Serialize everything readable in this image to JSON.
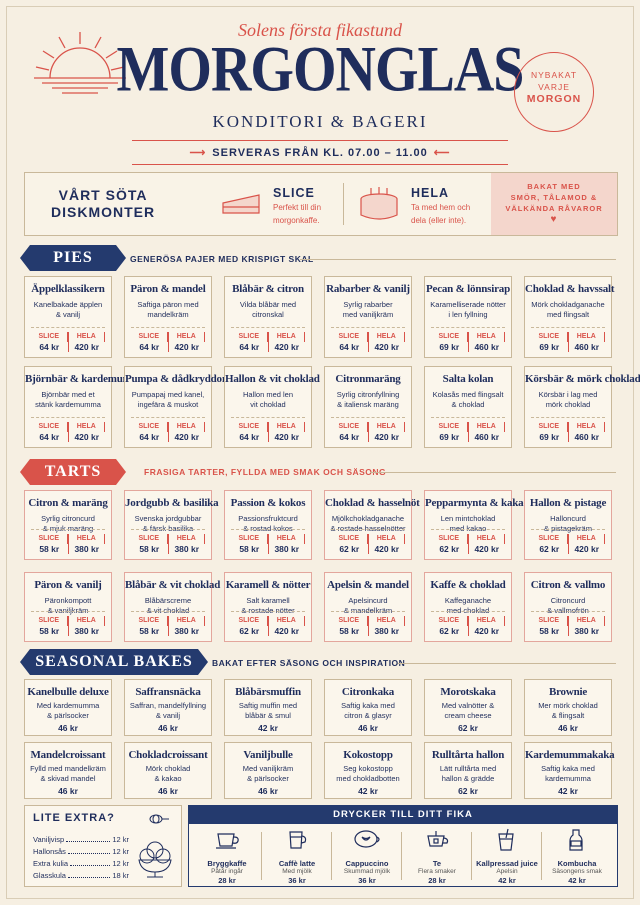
{
  "header": {
    "tagline": "Solens första fikastund",
    "brand": "MORGONGLAS",
    "subtitle": "KONDITORI & BAGERI",
    "serving": "SERVERAS FRÅN KL. 07.00 – 11.00",
    "stamp": [
      "NYBAKAT",
      "VARJE",
      "MORGON"
    ]
  },
  "showcase": {
    "title_line1": "VÅRT SÖTA",
    "title_line2": "DISKMONTER",
    "slice_name": "SLICE",
    "slice_desc_1": "Perfekt till din",
    "slice_desc_2": "morgonkaffe.",
    "whole_name": "HELA",
    "whole_desc_1": "Ta med hem och",
    "whole_desc_2": "dela (eller inte).",
    "promo": [
      "BAKAT MED",
      "SMÖR, TÅLAMOD &",
      "VÄLKÄNDA RÅVAROR"
    ]
  },
  "labels": {
    "slice": "SLICE",
    "whole": "HELA"
  },
  "pies": {
    "heading": "PIES",
    "subheading": "GENERÖSA PAJER MED KRISPIGT SKAL",
    "items": [
      {
        "name": "Äppelklassikern",
        "desc1": "Kanelbakade äpplen",
        "desc2": "& vanilj",
        "slice": "64 kr",
        "whole": "420 kr"
      },
      {
        "name": "Päron & mandel",
        "desc1": "Saftiga päron med",
        "desc2": "mandelkräm",
        "slice": "64 kr",
        "whole": "420 kr"
      },
      {
        "name": "Blåbär & citron",
        "desc1": "Vilda blåbär med",
        "desc2": "citronskal",
        "slice": "64 kr",
        "whole": "420 kr"
      },
      {
        "name": "Rabarber & vanilj",
        "desc1": "Syrlig rabarber",
        "desc2": "med vaniljkräm",
        "slice": "64 kr",
        "whole": "420 kr"
      },
      {
        "name": "Pecan & lönnsirap",
        "desc1": "Karamelliserade nötter",
        "desc2": "i len fyllning",
        "slice": "69 kr",
        "whole": "460 kr"
      },
      {
        "name": "Choklad & havssalt",
        "desc1": "Mörk chokladganache",
        "desc2": "med flingsalt",
        "slice": "69 kr",
        "whole": "460 kr"
      },
      {
        "name": "Björnbär & kardemumma",
        "desc1": "Björnbär med et",
        "desc2": "stänk kardemumma",
        "slice": "64 kr",
        "whole": "420 kr"
      },
      {
        "name": "Pumpa & dådkryddor",
        "desc1": "Pumpapaj med kanel,",
        "desc2": "ingefära & muskot",
        "slice": "64 kr",
        "whole": "420 kr"
      },
      {
        "name": "Hallon & vit choklad",
        "desc1": "Hallon med len",
        "desc2": "vit choklad",
        "slice": "64 kr",
        "whole": "420 kr"
      },
      {
        "name": "Citronmaräng",
        "desc1": "Syrlig citronfyllning",
        "desc2": "& italiensk maräng",
        "slice": "64 kr",
        "whole": "420 kr"
      },
      {
        "name": "Salta kolan",
        "desc1": "Kolasås med flingsalt",
        "desc2": "& choklad",
        "slice": "69 kr",
        "whole": "460 kr"
      },
      {
        "name": "Körsbär & mörk choklad",
        "desc1": "Körsbär i lag med",
        "desc2": "mörk choklad",
        "slice": "69 kr",
        "whole": "460 kr"
      }
    ]
  },
  "tarts": {
    "heading": "TARTS",
    "subheading": "FRASIGA TARTER, FYLLDA MED SMAK OCH SÄSONG",
    "items": [
      {
        "name": "Citron & maräng",
        "desc1": "Syrlig citroncurd",
        "desc2": "& mjuk maräng",
        "slice": "58 kr",
        "whole": "380 kr"
      },
      {
        "name": "Jordgubb & basilika",
        "desc1": "Svenska jordgubbar",
        "desc2": "& färsk basilika",
        "slice": "58 kr",
        "whole": "380 kr"
      },
      {
        "name": "Passion & kokos",
        "desc1": "Passionsfruktcurd",
        "desc2": "& rostad kokos",
        "slice": "58 kr",
        "whole": "380 kr"
      },
      {
        "name": "Choklad & hasselnöt",
        "desc1": "Mjölkchokladganache",
        "desc2": "& rostade hasselnötter",
        "slice": "62 kr",
        "whole": "420 kr"
      },
      {
        "name": "Pepparmynta & kakao",
        "desc1": "Len mintchoklad",
        "desc2": "med kakao",
        "slice": "62 kr",
        "whole": "420 kr"
      },
      {
        "name": "Hallon & pistage",
        "desc1": "Halloncurd",
        "desc2": "& pistagekräm",
        "slice": "62 kr",
        "whole": "420 kr"
      },
      {
        "name": "Päron & vanilj",
        "desc1": "Päronkompott",
        "desc2": "& vaniljkräm",
        "slice": "58 kr",
        "whole": "380 kr"
      },
      {
        "name": "Blåbär & vit choklad",
        "desc1": "Blåbärscreme",
        "desc2": "& vit choklad",
        "slice": "58 kr",
        "whole": "380 kr"
      },
      {
        "name": "Karamell & nötter",
        "desc1": "Salt karamell",
        "desc2": "& rostade nötter",
        "slice": "62 kr",
        "whole": "420 kr"
      },
      {
        "name": "Apelsin & mandel",
        "desc1": "Apelsincurd",
        "desc2": "& mandelkräm",
        "slice": "58 kr",
        "whole": "380 kr"
      },
      {
        "name": "Kaffe & choklad",
        "desc1": "Kaffeganache",
        "desc2": "med choklad",
        "slice": "62 kr",
        "whole": "420 kr"
      },
      {
        "name": "Citron & vallmo",
        "desc1": "Citroncurd",
        "desc2": "& vallmofrön",
        "slice": "58 kr",
        "whole": "380 kr"
      }
    ]
  },
  "seasonal": {
    "heading": "SEASONAL BAKES",
    "subheading": "BAKAT EFTER SÄSONG OCH INSPIRATION",
    "items": [
      {
        "name": "Kanelbulle deluxe",
        "desc1": "Med kardemumma",
        "desc2": "& pärlsocker",
        "price": "46 kr"
      },
      {
        "name": "Saffransnäcka",
        "desc1": "Saffran, mandelfyllning",
        "desc2": "& vanilj",
        "price": "46 kr"
      },
      {
        "name": "Blåbärsmuffin",
        "desc1": "Saftig muffin med",
        "desc2": "blåbär & smul",
        "price": "42 kr"
      },
      {
        "name": "Citronkaka",
        "desc1": "Saftig kaka med",
        "desc2": "citron & glasyr",
        "price": "46 kr"
      },
      {
        "name": "Morotskaka",
        "desc1": "Med valnötter &",
        "desc2": "cream cheese",
        "price": "62 kr"
      },
      {
        "name": "Brownie",
        "desc1": "Mer mörk choklad",
        "desc2": "& flingsalt",
        "price": "46 kr"
      },
      {
        "name": "Mandelcroissant",
        "desc1": "Fylld med mandelkräm",
        "desc2": "& skivad mandel",
        "price": "46 kr"
      },
      {
        "name": "Chokladcroissant",
        "desc1": "Mörk choklad",
        "desc2": "& kakao",
        "price": "46 kr"
      },
      {
        "name": "Vaniljbulle",
        "desc1": "Med vaniljkräm",
        "desc2": "& pärlsocker",
        "price": "46 kr"
      },
      {
        "name": "Kokostopp",
        "desc1": "Seg kokostopp",
        "desc2": "med chokladbotten",
        "price": "42 kr"
      },
      {
        "name": "Rulltårta hallon",
        "desc1": "Lätt rulltårta med",
        "desc2": "hallon & grädde",
        "price": "62 kr"
      },
      {
        "name": "Kardemummakaka",
        "desc1": "Saftig kaka med",
        "desc2": "kardemumma",
        "price": "42 kr"
      }
    ]
  },
  "extras": {
    "heading": "LITE EXTRA?",
    "items": [
      {
        "name": "Vaniljvisp",
        "price": "12 kr"
      },
      {
        "name": "Hallonsås",
        "price": "12 kr"
      },
      {
        "name": "Extra kulia",
        "price": "12 kr"
      },
      {
        "name": "Glasskula",
        "price": "18 kr"
      }
    ]
  },
  "drinks": {
    "heading": "DRYCKER TILL DITT FIKA",
    "items": [
      {
        "name": "Bryggkaffe",
        "desc": "Påtår ingår",
        "price": "28 kr",
        "icon": "coffee-cup-icon"
      },
      {
        "name": "Caffè latte",
        "desc": "Med mjölk",
        "price": "36 kr",
        "icon": "latte-mug-icon"
      },
      {
        "name": "Cappuccino",
        "desc": "Skummad mjölk",
        "price": "36 kr",
        "icon": "cappuccino-icon"
      },
      {
        "name": "Te",
        "desc": "Flera smaker",
        "price": "28 kr",
        "icon": "tea-cup-icon"
      },
      {
        "name": "Kallpressad juice",
        "desc": "Apelsin",
        "price": "42 kr",
        "icon": "juice-glass-icon"
      },
      {
        "name": "Kombucha",
        "desc": "Säsongens smak",
        "price": "42 kr",
        "icon": "bottle-icon"
      }
    ]
  },
  "colors": {
    "navy": "#1f2d5c",
    "coral": "#d9534a",
    "paper": "#f6efe2"
  }
}
